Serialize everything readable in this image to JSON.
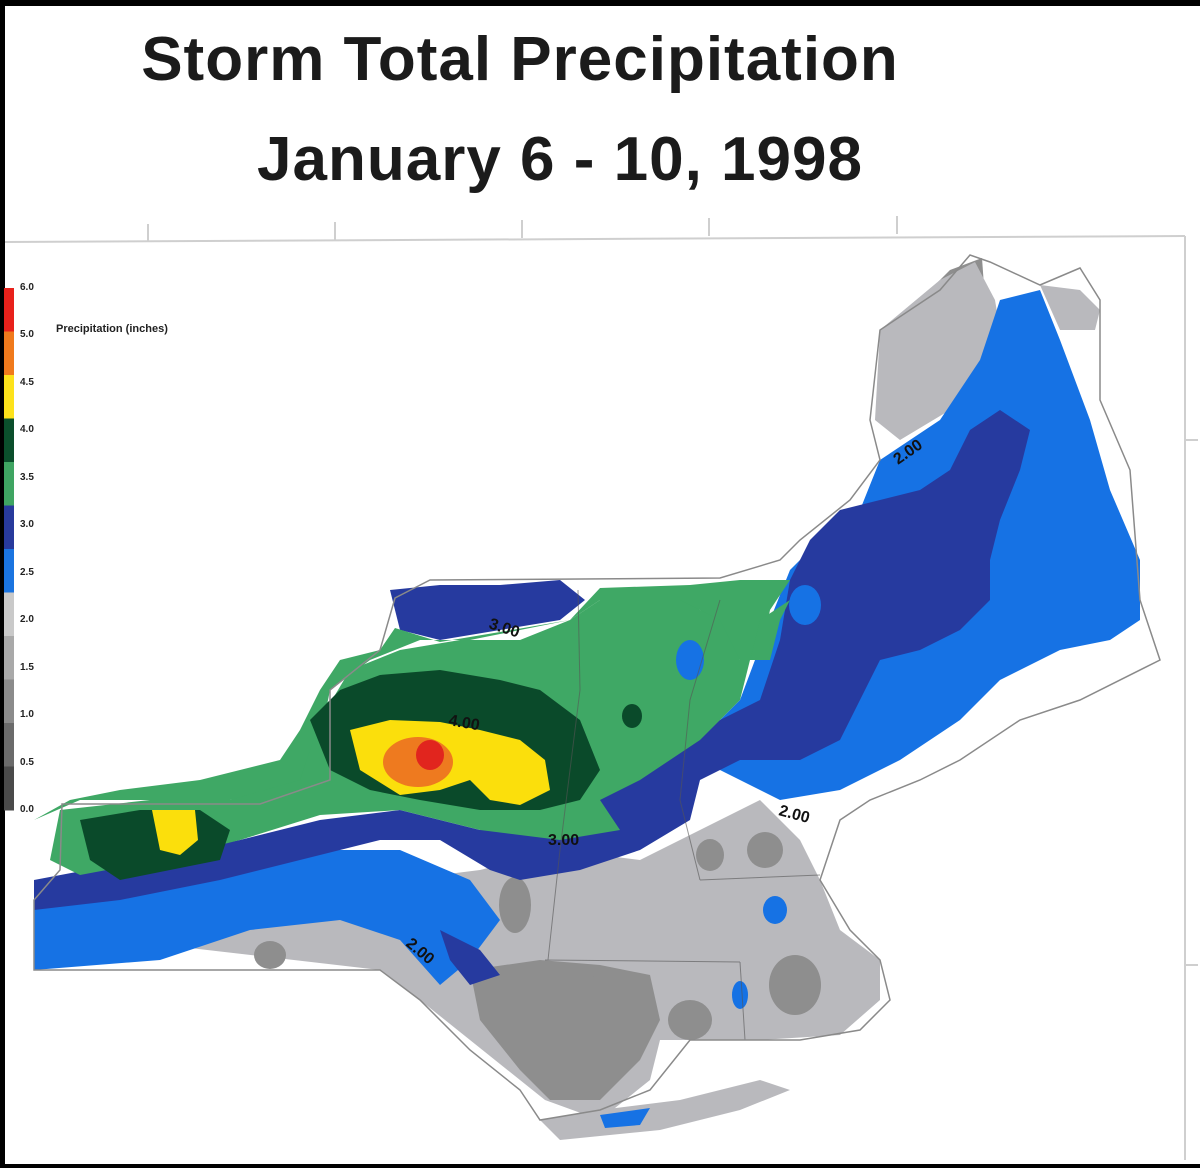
{
  "title_line1": "Storm Total Precipitation",
  "title_line2": "January 6 - 10, 1998",
  "legend": {
    "title": "Precipitation (inches)",
    "labels": [
      "6.0",
      "5.0",
      "4.5",
      "4.0",
      "3.5",
      "3.0",
      "2.5",
      "2.0",
      "1.5",
      "1.0",
      "0.5",
      "0.0"
    ],
    "colors": [
      "#e8211b",
      "#f07a1c",
      "#fde21b",
      "#0b4f2c",
      "#3fa562",
      "#283a9c",
      "#1a74e0",
      "#c9c9c9",
      "#a9a9a9",
      "#8b8b8b",
      "#6b6b6b",
      "#4a4a4a"
    ]
  },
  "contour_labels": [
    "3.00",
    "4.00",
    "3.00",
    "2.00",
    "2.00",
    "2.00"
  ],
  "colors": {
    "background": "#ffffff",
    "land_outline": "#8a8a8a",
    "dark_gray": "#8e8e8e",
    "gray": "#b9b9bd",
    "light_blue": "#1672e4",
    "dark_blue": "#263a9f",
    "light_green": "#3fa865",
    "dark_green": "#0a4a2a",
    "yellow": "#fbdf0c",
    "orange": "#ee7a1f",
    "red": "#e1251e"
  }
}
